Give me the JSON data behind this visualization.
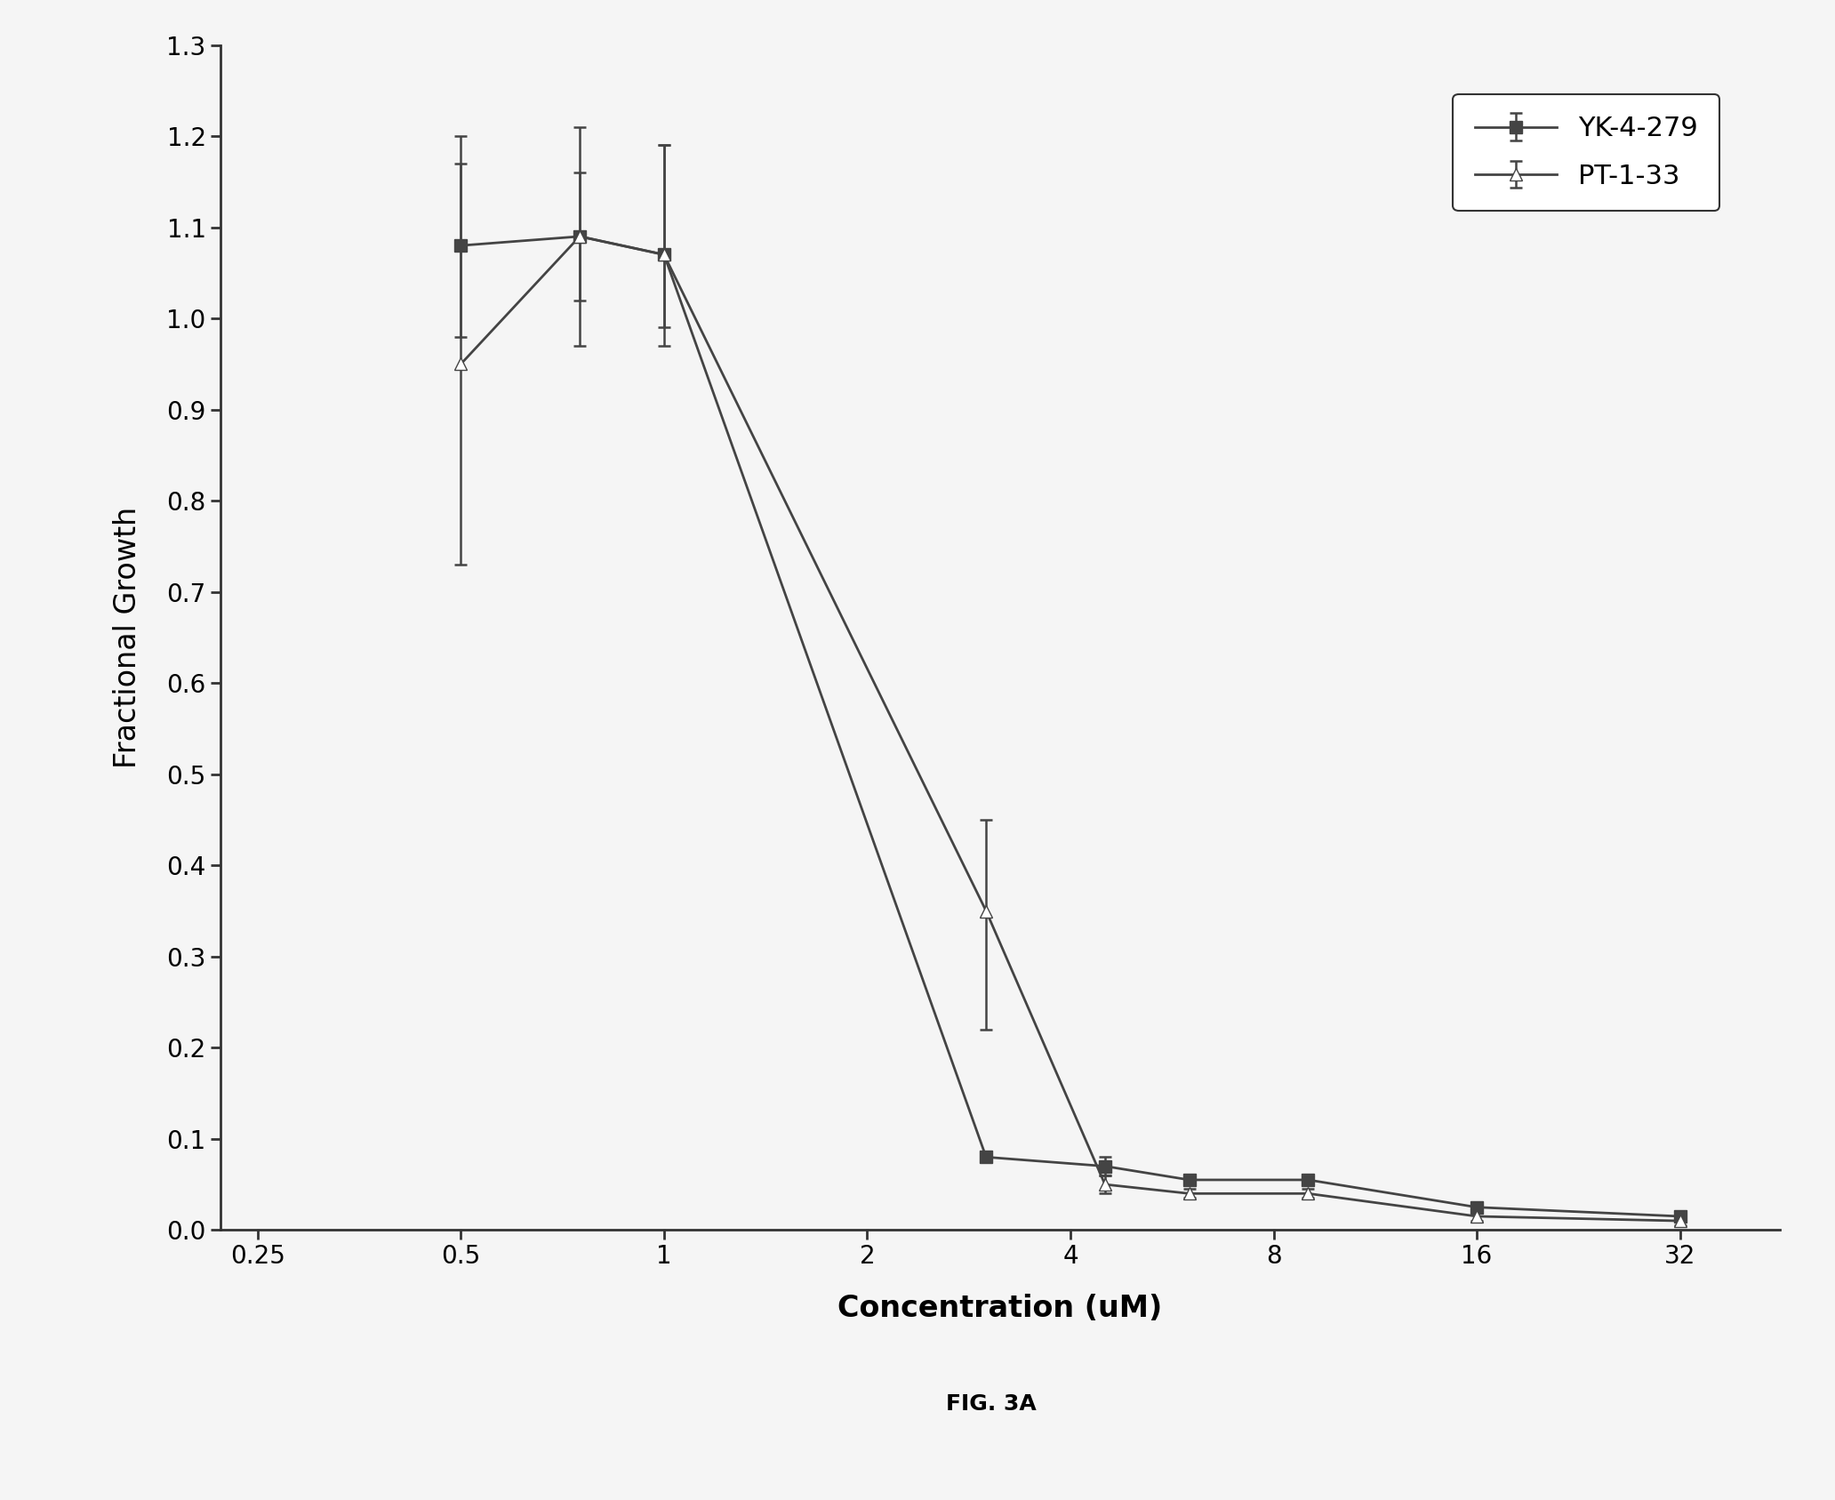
{
  "title": "FIG. 3A",
  "xlabel": "Concentration (uM)",
  "ylabel": "Fractional Growth",
  "yk4_x": [
    0.5,
    0.75,
    1.0,
    3.0,
    4.5,
    6.0,
    9.0,
    16.0,
    32.0
  ],
  "yk4_y": [
    1.08,
    1.09,
    1.07,
    0.08,
    0.07,
    0.055,
    0.055,
    0.025,
    0.015
  ],
  "yk4_yerr_low": [
    0.1,
    0.12,
    0.1,
    0.0,
    0.01,
    0.005,
    0.005,
    0.005,
    0.005
  ],
  "yk4_yerr_high": [
    0.12,
    0.12,
    0.12,
    0.0,
    0.01,
    0.005,
    0.005,
    0.005,
    0.005
  ],
  "pt133_x": [
    0.5,
    0.75,
    1.0,
    3.0,
    4.5,
    6.0,
    9.0,
    16.0,
    32.0
  ],
  "pt133_y": [
    0.95,
    1.09,
    1.07,
    0.35,
    0.05,
    0.04,
    0.04,
    0.015,
    0.01
  ],
  "pt133_yerr_low": [
    0.22,
    0.07,
    0.08,
    0.13,
    0.01,
    0.005,
    0.005,
    0.005,
    0.005
  ],
  "pt133_yerr_high": [
    0.22,
    0.07,
    0.12,
    0.1,
    0.01,
    0.005,
    0.005,
    0.005,
    0.005
  ],
  "xtick_labels": [
    "0.25",
    "0.5",
    "1",
    "2",
    "4",
    "8",
    "16",
    "32"
  ],
  "xtick_positions": [
    0.25,
    0.5,
    1.0,
    2.0,
    4.0,
    8.0,
    16.0,
    32.0
  ],
  "ylim": [
    0.0,
    1.3
  ],
  "yticks": [
    0.0,
    0.1,
    0.2,
    0.3,
    0.4,
    0.5,
    0.6,
    0.7,
    0.8,
    0.9,
    1.0,
    1.1,
    1.2,
    1.3
  ],
  "line_color": "#444444",
  "background_color": "#f5f5f5",
  "legend_labels": [
    "YK-4-279",
    "PT-1-33"
  ],
  "marker_yk4": "s",
  "marker_pt133": "^",
  "markersize": 10,
  "linewidth": 2.0,
  "capsize": 5,
  "title_fontsize": 18,
  "label_fontsize": 24,
  "tick_fontsize": 20,
  "legend_fontsize": 22
}
